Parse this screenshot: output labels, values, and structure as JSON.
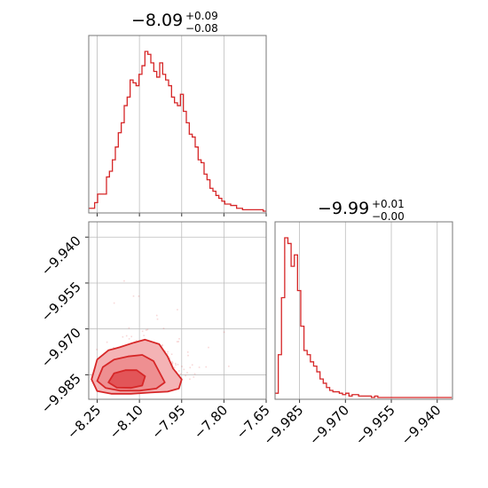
{
  "chart_data": {
    "type": "corner",
    "color": "#d62728",
    "panels": [
      {
        "id": "param0-histogram",
        "type": "histogram",
        "title": {
          "median": "−8.09",
          "upper": "+0.09",
          "lower": "−0.08"
        },
        "xlim": [
          -8.28,
          -7.65
        ],
        "xticks": [
          -8.25,
          -8.1,
          -7.95,
          -7.8,
          -7.65
        ],
        "bin_start": -8.28,
        "bin_width": 0.0105,
        "counts": [
          2,
          2,
          6,
          12,
          12,
          12,
          24,
          28,
          36,
          45,
          55,
          62,
          74,
          80,
          92,
          90,
          88,
          96,
          102,
          112,
          110,
          104,
          98,
          94,
          104,
          96,
          92,
          88,
          80,
          76,
          74,
          82,
          70,
          62,
          54,
          52,
          45,
          36,
          34,
          26,
          22,
          16,
          14,
          11,
          9,
          7,
          5,
          5,
          4,
          4,
          2,
          2,
          1,
          1,
          1,
          1,
          1,
          1,
          1,
          0
        ]
      },
      {
        "id": "param1-histogram",
        "type": "histogram",
        "title": {
          "median": "−9.99",
          "upper": "+0.01",
          "lower": "−0.00"
        },
        "xlim": [
          -9.993,
          -9.935
        ],
        "xticks": [
          -9.985,
          -9.97,
          -9.955,
          -9.94
        ],
        "xtick_labels": [
          "−9.985",
          "−9.970",
          "−9.955",
          "−9.940"
        ],
        "bin_start": -9.993,
        "bin_width": 0.00105,
        "counts": [
          3,
          30,
          70,
          112,
          108,
          92,
          100,
          75,
          50,
          33,
          30,
          25,
          22,
          18,
          13,
          10,
          7,
          5,
          4,
          4,
          3,
          2,
          3,
          1,
          2,
          2,
          1,
          1,
          1,
          1,
          0,
          1,
          0,
          0,
          0,
          0,
          0,
          0,
          0,
          0,
          0,
          0,
          0,
          0,
          0,
          0,
          0,
          0,
          0,
          0,
          0,
          0,
          0,
          0,
          0
        ]
      },
      {
        "id": "joint-density",
        "type": "contour",
        "xlim": [
          -8.28,
          -7.65
        ],
        "ylim": [
          -9.993,
          -9.935
        ],
        "xticks": [
          -8.25,
          -8.1,
          -7.95,
          -7.8,
          -7.65
        ],
        "xtick_labels": [
          "−8.25",
          "−8.10",
          "−7.95",
          "−7.80",
          "−7.65"
        ],
        "yticks": [
          -9.94,
          -9.955,
          -9.97,
          -9.985
        ],
        "ytick_labels": [
          "−9.940",
          "−9.955",
          "−9.970",
          "−9.985"
        ],
        "contour_levels": [
          {
            "level": "outer",
            "fill": "#f4b3b5",
            "points": [
              [
                -8.27,
                -9.9865
              ],
              [
                -8.25,
                -9.98
              ],
              [
                -8.21,
                -9.977
              ],
              [
                -8.17,
                -9.976
              ],
              [
                -8.12,
                -9.9745
              ],
              [
                -8.08,
                -9.9735
              ],
              [
                -8.03,
                -9.975
              ],
              [
                -8.0,
                -9.979
              ],
              [
                -7.98,
                -9.983
              ],
              [
                -7.95,
                -9.9865
              ],
              [
                -7.96,
                -9.9895
              ],
              [
                -8.0,
                -9.9905
              ],
              [
                -8.06,
                -9.9908
              ],
              [
                -8.13,
                -9.9912
              ],
              [
                -8.2,
                -9.9912
              ],
              [
                -8.25,
                -9.9903
              ]
            ]
          },
          {
            "level": "middle",
            "fill": "#ee8f91",
            "points": [
              [
                -8.25,
                -9.987
              ],
              [
                -8.23,
                -9.9825
              ],
              [
                -8.19,
                -9.98
              ],
              [
                -8.14,
                -9.979
              ],
              [
                -8.09,
                -9.9785
              ],
              [
                -8.05,
                -9.9805
              ],
              [
                -8.03,
                -9.984
              ],
              [
                -8.01,
                -9.9875
              ],
              [
                -8.04,
                -9.9895
              ],
              [
                -8.1,
                -9.9902
              ],
              [
                -8.17,
                -9.9902
              ],
              [
                -8.22,
                -9.9893
              ]
            ]
          },
          {
            "level": "inner",
            "fill": "#e25558",
            "points": [
              [
                -8.21,
                -9.9875
              ],
              [
                -8.19,
                -9.9845
              ],
              [
                -8.15,
                -9.9835
              ],
              [
                -8.11,
                -9.9835
              ],
              [
                -8.08,
                -9.9855
              ],
              [
                -8.09,
                -9.9885
              ],
              [
                -8.13,
                -9.9893
              ],
              [
                -8.18,
                -9.9892
              ]
            ]
          }
        ]
      }
    ]
  }
}
